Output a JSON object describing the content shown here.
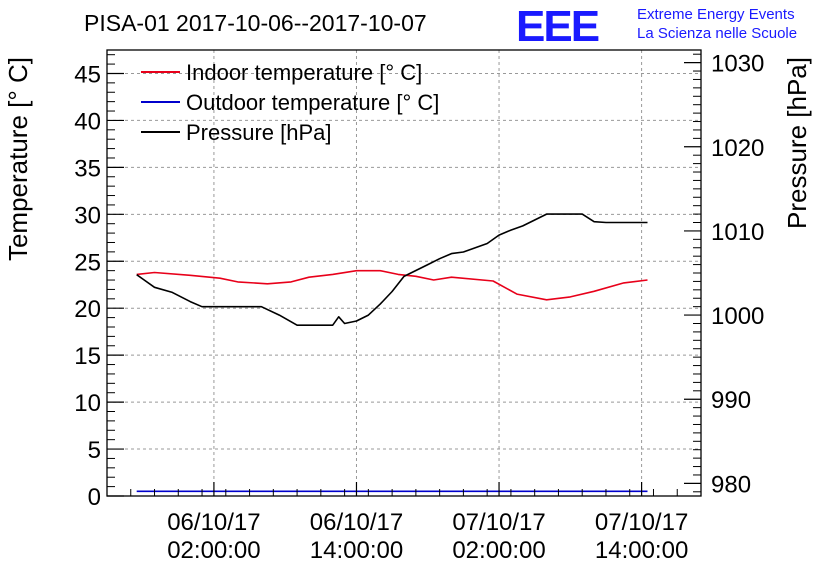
{
  "chart_data": {
    "type": "line",
    "title": "PISA-01 2017-10-06--2017-10-07",
    "xlabel": "",
    "ylabel": "Temperature [° C]",
    "y2label": "Pressure [hPa]",
    "ylim": [
      0,
      47.5
    ],
    "y2lim": [
      978.5,
      1031.5
    ],
    "xlim": [
      "2017-10-05 17:00",
      "2017-10-07 19:00"
    ],
    "x_ticks": [
      {
        "date": "06/10/17",
        "time": "02:00:00"
      },
      {
        "date": "06/10/17",
        "time": "14:00:00"
      },
      {
        "date": "07/10/17",
        "time": "02:00:00"
      },
      {
        "date": "07/10/17",
        "time": "14:00:00"
      }
    ],
    "y_ticks": [
      0,
      5,
      10,
      15,
      20,
      25,
      30,
      35,
      40,
      45
    ],
    "y2_ticks": [
      980,
      990,
      1000,
      1010,
      1020,
      1030
    ],
    "grid": true,
    "legend_position": "top-left",
    "series": [
      {
        "name": "Indoor temperature [° C]",
        "color": "#e8001a",
        "axis": "left",
        "x": [
          "2017-10-05 19:30",
          "2017-10-05 21:00",
          "2017-10-06 00:00",
          "2017-10-06 02:30",
          "2017-10-06 04:00",
          "2017-10-06 06:30",
          "2017-10-06 08:30",
          "2017-10-06 10:00",
          "2017-10-06 12:00",
          "2017-10-06 14:00",
          "2017-10-06 16:00",
          "2017-10-06 17:30",
          "2017-10-06 19:00",
          "2017-10-06 20:30",
          "2017-10-06 22:00",
          "2017-10-07 01:30",
          "2017-10-07 03:30",
          "2017-10-07 06:00",
          "2017-10-07 08:00",
          "2017-10-07 10:00",
          "2017-10-07 12:30",
          "2017-10-07 14:30"
        ],
        "y": [
          23.6,
          23.8,
          23.5,
          23.2,
          22.8,
          22.6,
          22.8,
          23.3,
          23.6,
          24.0,
          24.0,
          23.6,
          23.4,
          23.0,
          23.3,
          22.9,
          21.5,
          20.9,
          21.2,
          21.8,
          22.7,
          23.0
        ]
      },
      {
        "name": "Outdoor temperature [° C]",
        "color": "#0000cc",
        "axis": "left",
        "x": [
          "2017-10-05 19:30",
          "2017-10-07 14:30"
        ],
        "y": [
          0.5,
          0.5
        ]
      },
      {
        "name": "Pressure [hPa]",
        "color": "#000000",
        "axis": "right",
        "x": [
          "2017-10-05 19:30",
          "2017-10-05 20:00",
          "2017-10-05 21:00",
          "2017-10-05 22:30",
          "2017-10-06 00:00",
          "2017-10-06 01:00",
          "2017-10-06 04:00",
          "2017-10-06 06:00",
          "2017-10-06 07:30",
          "2017-10-06 09:00",
          "2017-10-06 10:00",
          "2017-10-06 12:00",
          "2017-10-06 12:30",
          "2017-10-06 13:00",
          "2017-10-06 14:00",
          "2017-10-06 15:00",
          "2017-10-06 16:00",
          "2017-10-06 17:00",
          "2017-10-06 18:00",
          "2017-10-06 19:00",
          "2017-10-06 20:00",
          "2017-10-06 21:00",
          "2017-10-06 22:00",
          "2017-10-06 23:00",
          "2017-10-07 00:00",
          "2017-10-07 01:00",
          "2017-10-07 02:00",
          "2017-10-07 03:00",
          "2017-10-07 04:00",
          "2017-10-07 05:00",
          "2017-10-07 06:00",
          "2017-10-07 07:30",
          "2017-10-07 09:00",
          "2017-10-07 10:00",
          "2017-10-07 11:00",
          "2017-10-07 14:30"
        ],
        "y": [
          1004.8,
          1004.3,
          1003.3,
          1002.7,
          1001.6,
          1001.0,
          1001.0,
          1001.0,
          1000.0,
          998.8,
          998.8,
          998.8,
          999.8,
          999.0,
          999.3,
          1000.0,
          1001.3,
          1002.8,
          1004.6,
          1005.3,
          1006.0,
          1006.7,
          1007.3,
          1007.5,
          1008.0,
          1008.5,
          1009.5,
          1010.1,
          1010.6,
          1011.3,
          1012.0,
          1012.0,
          1012.0,
          1011.1,
          1011.0,
          1011.0
        ]
      }
    ]
  },
  "logo": {
    "text": "EEE",
    "line1": "Extreme Energy Events",
    "line2": "La Scienza nelle Scuole",
    "color": "#1a1aff"
  }
}
